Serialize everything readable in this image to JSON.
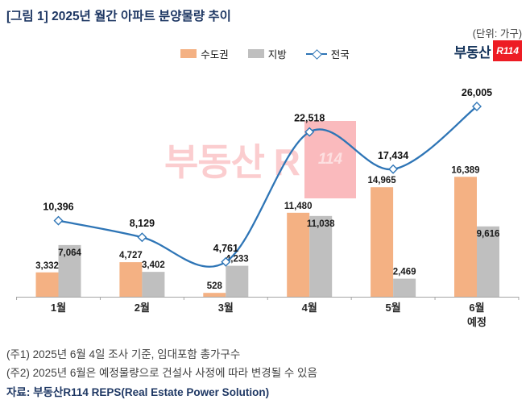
{
  "header": {
    "title": "[그림 1] 2025년 월간 아파트 분양물량 추이",
    "unit": "(단위: 가구)"
  },
  "logo": {
    "text": "부동산",
    "badge": "R114"
  },
  "watermark": {
    "text": "부동산 R",
    "badge": "114"
  },
  "legend": [
    {
      "label": "수도권",
      "color": "#F4B183",
      "type": "bar"
    },
    {
      "label": "지방",
      "color": "#BFBFBF",
      "type": "bar"
    },
    {
      "label": "전국",
      "color": "#2E75B6",
      "type": "line"
    }
  ],
  "chart_data": {
    "type": "bar",
    "subtype": "grouped-bars-with-line",
    "title": "[그림 1] 2025년 월간 아파트 분양물량 추이",
    "unit_label": "(단위: 가구)",
    "categories": [
      "1월",
      "2월",
      "3월",
      "4월",
      "5월",
      "6월"
    ],
    "category_note": {
      "index": 5,
      "label": "예정"
    },
    "series": [
      {
        "name": "수도권",
        "type": "bar",
        "color": "#F4B183",
        "values": [
          3332,
          4727,
          528,
          11480,
          14965,
          16389
        ]
      },
      {
        "name": "지방",
        "type": "bar",
        "color": "#BFBFBF",
        "values": [
          7064,
          3402,
          4233,
          11038,
          2469,
          9616
        ]
      },
      {
        "name": "전국",
        "type": "line",
        "color": "#2E75B6",
        "values": [
          10396,
          8129,
          4761,
          22518,
          17434,
          26005
        ]
      }
    ],
    "ylim": [
      0,
      27000
    ],
    "grid": false,
    "legend_position": "top",
    "labels_format": "thousands-comma"
  },
  "notes": [
    "(주1) 2025년 6월 4일 조사 기준, 임대포함 총가구수",
    "(주2) 2025년 6월은 예정물량으로 건설사 사정에 따라 변경될 수 있음"
  ],
  "source": "자료: 부동산R114 REPS(Real Estate Power Solution)"
}
